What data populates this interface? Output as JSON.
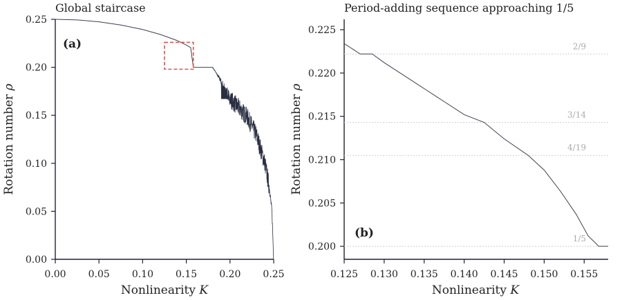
{
  "chart_data": [
    {
      "type": "line",
      "panel": "(a)",
      "title": "Global staircase",
      "xlabel": "Nonlinearity",
      "xlabel_var": "K",
      "ylabel": "Rotation number",
      "ylabel_var": "ρ",
      "xlim": [
        0.0,
        0.25
      ],
      "ylim": [
        0.0,
        0.25
      ],
      "xticks": [
        "0.00",
        "0.05",
        "0.10",
        "0.15",
        "0.20",
        "0.25"
      ],
      "yticks": [
        "0.00",
        "0.05",
        "0.10",
        "0.15",
        "0.20",
        "0.25"
      ],
      "series": [
        {
          "x": [
            0.0,
            0.025,
            0.05,
            0.075,
            0.1,
            0.12,
            0.14,
            0.15,
            0.155,
            0.158,
            0.18,
            0.183,
            0.19,
            0.2,
            0.21,
            0.22,
            0.23,
            0.24,
            0.245,
            0.248,
            0.25
          ],
          "y": [
            0.25,
            0.2494,
            0.2474,
            0.2441,
            0.2394,
            0.2343,
            0.2277,
            0.2232,
            0.2205,
            0.2,
            0.2,
            0.196,
            0.185,
            0.167,
            0.158,
            0.148,
            0.13,
            0.1,
            0.075,
            0.05,
            0.0
          ]
        }
      ],
      "zoom_box": {
        "x": [
          0.125,
          0.158
        ],
        "y": [
          0.198,
          0.226
        ]
      }
    },
    {
      "type": "line",
      "panel": "(b)",
      "title": "Period-adding sequence approaching 1/5",
      "xlabel": "Nonlinearity",
      "xlabel_var": "K",
      "ylabel": "Rotation number",
      "ylabel_var": "ρ",
      "xlim": [
        0.125,
        0.158
      ],
      "ylim": [
        0.1985,
        0.2262
      ],
      "xticks": [
        "0.125",
        "0.130",
        "0.135",
        "0.140",
        "0.145",
        "0.150",
        "0.155"
      ],
      "yticks": [
        "0.200",
        "0.205",
        "0.210",
        "0.215",
        "0.220",
        "0.225"
      ],
      "reference_lines": [
        {
          "label": "2/9",
          "y": 0.2222
        },
        {
          "label": "3/14",
          "y": 0.2143
        },
        {
          "label": "4/19",
          "y": 0.2105
        },
        {
          "label": "1/5",
          "y": 0.2
        }
      ],
      "series": [
        {
          "x": [
            0.125,
            0.126,
            0.127,
            0.1285,
            0.13,
            0.135,
            0.14,
            0.1425,
            0.145,
            0.148,
            0.15,
            0.152,
            0.154,
            0.1555,
            0.1565,
            0.1568,
            0.158
          ],
          "y": [
            0.2234,
            0.2228,
            0.2222,
            0.2222,
            0.2212,
            0.2182,
            0.2152,
            0.2143,
            0.2124,
            0.2105,
            0.2088,
            0.2064,
            0.2037,
            0.2012,
            0.2003,
            0.2,
            0.2
          ]
        }
      ]
    }
  ]
}
